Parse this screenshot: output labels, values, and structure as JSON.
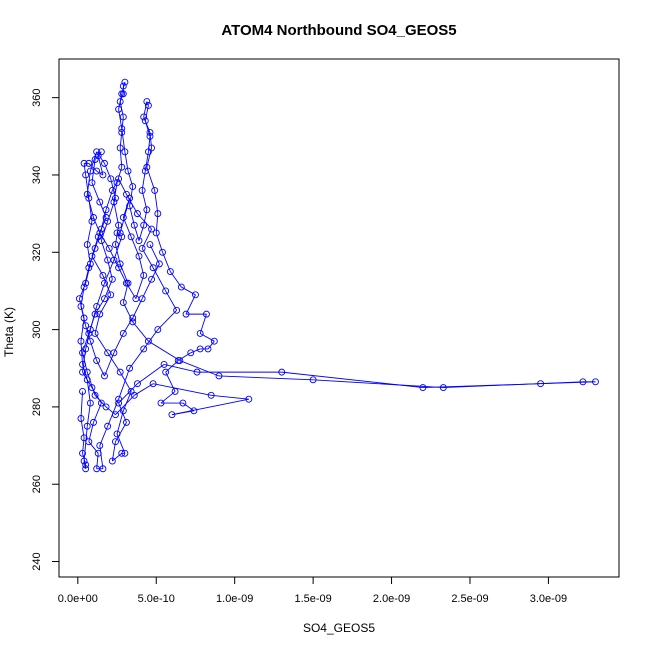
{
  "chart_data": {
    "type": "scatter",
    "title": "ATOM4 Northbound SO4_GEOS5",
    "xlabel": "SO4_GEOS5",
    "ylabel": "Theta (K)",
    "xlim": [
      -1.2e-10,
      3.45e-09
    ],
    "ylim": [
      236,
      370
    ],
    "x_ticks": [
      0,
      5e-10,
      1e-09,
      1.5e-09,
      2e-09,
      2.5e-09,
      3e-09
    ],
    "x_tick_labels": [
      "0.0e+00",
      "5.0e-10",
      "1.0e-09",
      "1.5e-09",
      "2.0e-09",
      "2.5e-09",
      "3.0e-09"
    ],
    "y_ticks": [
      240,
      260,
      280,
      300,
      320,
      340,
      360
    ],
    "y_tick_labels": [
      "240",
      "260",
      "280",
      "300",
      "320",
      "340",
      "360"
    ],
    "grid": false,
    "legend": "none",
    "series": [
      {
        "color": "#0000ff",
        "marker": "open-circle",
        "connected": true,
        "points": [
          [
            3e-11,
            284
          ],
          [
            2e-11,
            277
          ],
          [
            4e-11,
            272
          ],
          [
            3e-11,
            268
          ],
          [
            5e-11,
            265
          ],
          [
            5e-11,
            264
          ],
          [
            4e-11,
            266
          ],
          [
            6e-11,
            275
          ],
          [
            8e-11,
            281
          ],
          [
            6e-11,
            287
          ],
          [
            3e-11,
            291
          ],
          [
            2e-11,
            297
          ],
          [
            4e-11,
            303
          ],
          [
            1e-11,
            308
          ],
          [
            5e-11,
            312
          ],
          [
            8e-11,
            317
          ],
          [
            6e-11,
            322
          ],
          [
            9e-11,
            328
          ],
          [
            7e-11,
            334
          ],
          [
            5e-11,
            340
          ],
          [
            4e-11,
            343
          ],
          [
            7e-11,
            343
          ],
          [
            1.2e-10,
            341
          ],
          [
            1.6e-10,
            340
          ],
          [
            1.3e-10,
            345
          ],
          [
            1.5e-10,
            346
          ],
          [
            1.1e-10,
            344
          ],
          [
            9e-11,
            338
          ],
          [
            1.4e-10,
            333
          ],
          [
            1.8e-10,
            329
          ],
          [
            1.3e-10,
            324
          ],
          [
            9e-11,
            319
          ],
          [
            1.6e-10,
            314
          ],
          [
            2.1e-10,
            309
          ],
          [
            1.4e-10,
            304
          ],
          [
            1.1e-10,
            299
          ],
          [
            1.9e-10,
            294
          ],
          [
            2.7e-10,
            289
          ],
          [
            3.4e-10,
            284
          ],
          [
            2.9e-10,
            279
          ],
          [
            2.5e-10,
            273
          ],
          [
            3e-10,
            268
          ],
          [
            2.8e-10,
            268
          ],
          [
            2.2e-10,
            266
          ],
          [
            2.4e-10,
            271
          ],
          [
            3.1e-10,
            276
          ],
          [
            2.6e-10,
            281
          ],
          [
            3.8e-10,
            286
          ],
          [
            5.5e-10,
            291
          ],
          [
            7.6e-10,
            289
          ],
          [
            1.3e-09,
            289
          ],
          [
            2.2e-09,
            285
          ],
          [
            2.95e-09,
            286
          ],
          [
            3.3e-09,
            286.5
          ],
          [
            3.22e-09,
            286.5
          ],
          [
            2.33e-09,
            285
          ],
          [
            1.5e-09,
            287
          ],
          [
            9e-10,
            288
          ],
          [
            6.5e-10,
            292
          ],
          [
            4.5e-10,
            297
          ],
          [
            3.5e-10,
            302
          ],
          [
            2.9e-10,
            307
          ],
          [
            3.2e-10,
            312
          ],
          [
            2.7e-10,
            317
          ],
          [
            2.4e-10,
            322
          ],
          [
            2.6e-10,
            327
          ],
          [
            2.3e-10,
            333
          ],
          [
            2.5e-10,
            338
          ],
          [
            2.8e-10,
            342
          ],
          [
            2.7e-10,
            347
          ],
          [
            2.8e-10,
            351
          ],
          [
            2.9e-10,
            355
          ],
          [
            2.7e-10,
            359
          ],
          [
            2.9e-10,
            361
          ],
          [
            2.9e-10,
            363
          ],
          [
            3e-10,
            364
          ],
          [
            2.8e-10,
            361
          ],
          [
            2.6e-10,
            357
          ],
          [
            2.8e-10,
            352
          ],
          [
            3e-10,
            346
          ],
          [
            3.2e-10,
            341
          ],
          [
            3.5e-10,
            337
          ],
          [
            3.3e-10,
            332
          ],
          [
            3.6e-10,
            327
          ],
          [
            3.9e-10,
            323
          ],
          [
            4.2e-10,
            327
          ],
          [
            4.4e-10,
            331
          ],
          [
            4.1e-10,
            336
          ],
          [
            4.3e-10,
            341
          ],
          [
            4.5e-10,
            346
          ],
          [
            4.6e-10,
            350
          ],
          [
            4.3e-10,
            354
          ],
          [
            4.5e-10,
            358
          ],
          [
            4.4e-10,
            359
          ],
          [
            4.2e-10,
            355
          ],
          [
            4.6e-10,
            351
          ],
          [
            4.7e-10,
            347
          ],
          [
            4.4e-10,
            342
          ],
          [
            4.9e-10,
            336
          ],
          [
            5.1e-10,
            330
          ],
          [
            5e-10,
            325
          ],
          [
            5.4e-10,
            320
          ],
          [
            5.9e-10,
            315
          ],
          [
            6.6e-10,
            311
          ],
          [
            7.5e-10,
            309
          ],
          [
            6.9e-10,
            304
          ],
          [
            8.2e-10,
            304
          ],
          [
            7.8e-10,
            299
          ],
          [
            8.7e-10,
            297
          ],
          [
            8.3e-10,
            295
          ],
          [
            7.8e-10,
            295
          ],
          [
            7.2e-10,
            294
          ],
          [
            6.4e-10,
            292
          ],
          [
            5.6e-10,
            289
          ],
          [
            6.2e-10,
            284
          ],
          [
            5.3e-10,
            281
          ],
          [
            6.7e-10,
            281
          ],
          [
            7.4e-10,
            279
          ],
          [
            6e-10,
            278
          ],
          [
            1.09e-09,
            282
          ],
          [
            8.5e-10,
            283
          ],
          [
            4.8e-10,
            286
          ],
          [
            3.6e-10,
            283
          ],
          [
            2.4e-10,
            278
          ],
          [
            1.8e-10,
            280
          ],
          [
            1.1e-10,
            283
          ],
          [
            6e-11,
            289
          ],
          [
            3e-11,
            294
          ],
          [
            7e-11,
            299
          ],
          [
            1.1e-10,
            304
          ],
          [
            1.7e-10,
            308
          ],
          [
            2.2e-10,
            313
          ],
          [
            1.9e-10,
            318
          ],
          [
            1.5e-10,
            323
          ],
          [
            1.9e-10,
            328
          ],
          [
            2.4e-10,
            334
          ],
          [
            2.1e-10,
            339
          ],
          [
            1.7e-10,
            343
          ],
          [
            1.2e-10,
            346
          ],
          [
            8e-11,
            341
          ],
          [
            6e-11,
            335
          ],
          [
            1e-10,
            329
          ],
          [
            1.4e-10,
            325
          ],
          [
            2e-10,
            321
          ],
          [
            2.6e-10,
            316
          ],
          [
            3.1e-10,
            312
          ],
          [
            3.7e-10,
            308
          ],
          [
            4.2e-10,
            314
          ],
          [
            3.9e-10,
            319
          ],
          [
            3.4e-10,
            324
          ],
          [
            2.9e-10,
            329
          ],
          [
            3.3e-10,
            334
          ],
          [
            2.7e-10,
            325
          ],
          [
            2.5e-10,
            325
          ],
          [
            2.8e-10,
            324
          ],
          [
            2.3e-10,
            318
          ],
          [
            1.7e-10,
            312
          ],
          [
            1.2e-10,
            306
          ],
          [
            8e-11,
            300
          ],
          [
            5e-11,
            295
          ],
          [
            3e-11,
            289
          ],
          [
            9e-11,
            285
          ],
          [
            1.5e-10,
            281
          ],
          [
            1e-10,
            276
          ],
          [
            7e-11,
            271
          ],
          [
            1.3e-10,
            268
          ],
          [
            1.2e-10,
            264
          ],
          [
            1.6e-10,
            264
          ],
          [
            1.4e-10,
            270
          ],
          [
            1.9e-10,
            275
          ],
          [
            2.6e-10,
            282
          ],
          [
            3.3e-10,
            290
          ],
          [
            4.2e-10,
            295
          ],
          [
            5.1e-10,
            300
          ],
          [
            6.3e-10,
            305
          ],
          [
            5.6e-10,
            310
          ],
          [
            4.8e-10,
            316
          ],
          [
            4.1e-10,
            321
          ],
          [
            4.7e-10,
            326
          ],
          [
            3.8e-10,
            330
          ],
          [
            3.1e-10,
            335
          ],
          [
            2.6e-10,
            339
          ],
          [
            2.2e-10,
            336
          ],
          [
            1.8e-10,
            331
          ],
          [
            1.5e-10,
            326
          ],
          [
            1.1e-10,
            321
          ],
          [
            7e-11,
            316
          ],
          [
            4e-11,
            311
          ],
          [
            2e-11,
            306
          ],
          [
            5e-11,
            301
          ],
          [
            8e-11,
            297
          ],
          [
            1.2e-10,
            292
          ],
          [
            1.7e-10,
            288
          ],
          [
            2.3e-10,
            294
          ],
          [
            2.9e-10,
            299
          ],
          [
            3.5e-10,
            303
          ],
          [
            4.1e-10,
            308
          ],
          [
            4.7e-10,
            313
          ],
          [
            5.2e-10,
            317
          ],
          [
            4.6e-10,
            322
          ]
        ]
      }
    ]
  }
}
